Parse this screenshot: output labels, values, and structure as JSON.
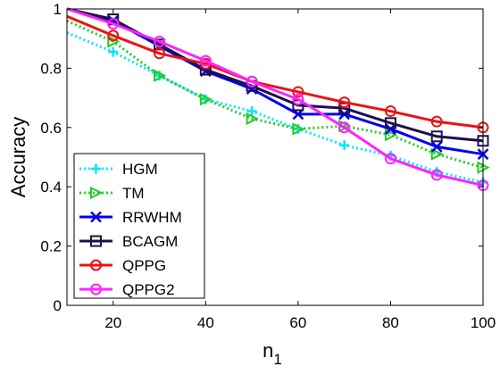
{
  "chart_data": {
    "type": "line",
    "title": "",
    "xlabel": "n",
    "xlabel_subscript": "1",
    "ylabel": "Accuracy",
    "x": [
      10,
      20,
      30,
      40,
      50,
      60,
      70,
      80,
      90,
      100
    ],
    "xlim": [
      10,
      100
    ],
    "ylim": [
      0,
      1
    ],
    "xticks": [
      20,
      40,
      60,
      80,
      100
    ],
    "xtick_labels": [
      "20",
      "40",
      "60",
      "80",
      "100"
    ],
    "yticks": [
      0,
      0.2,
      0.4,
      0.6,
      0.8,
      1
    ],
    "ytick_labels": [
      "0",
      "0.2",
      "0.4",
      "0.6",
      "0.8",
      "1"
    ],
    "grid": false,
    "legend_position": "bottom-left",
    "series": [
      {
        "name": "HGM",
        "color": "#00e5ff",
        "line": "dotted",
        "marker": "plus",
        "values": [
          0.92,
          0.855,
          0.775,
          0.695,
          0.655,
          0.595,
          0.54,
          0.505,
          0.45,
          0.415
        ]
      },
      {
        "name": "TM",
        "color": "#22cc22",
        "line": "dotted",
        "marker": "triangle-right",
        "values": [
          0.96,
          0.89,
          0.775,
          0.695,
          0.63,
          0.595,
          0.605,
          0.575,
          0.51,
          0.465
        ]
      },
      {
        "name": "RRWHM",
        "color": "#0000ee",
        "line": "solid",
        "marker": "x",
        "values": [
          1.0,
          0.96,
          0.875,
          0.79,
          0.73,
          0.645,
          0.645,
          0.595,
          0.535,
          0.51
        ]
      },
      {
        "name": "BCAGM",
        "color": "#20104a",
        "line": "solid",
        "marker": "square",
        "values": [
          1.0,
          0.965,
          0.88,
          0.795,
          0.74,
          0.675,
          0.665,
          0.615,
          0.57,
          0.555
        ]
      },
      {
        "name": "QPPG",
        "color": "#ee1111",
        "line": "solid",
        "marker": "circle",
        "values": [
          0.975,
          0.91,
          0.85,
          0.815,
          0.755,
          0.72,
          0.685,
          0.655,
          0.62,
          0.6
        ]
      },
      {
        "name": "QPPG2",
        "color": "#ff22ff",
        "line": "solid",
        "marker": "circle",
        "values": [
          1.0,
          0.95,
          0.89,
          0.825,
          0.755,
          0.695,
          0.6,
          0.495,
          0.44,
          0.405
        ]
      }
    ]
  }
}
